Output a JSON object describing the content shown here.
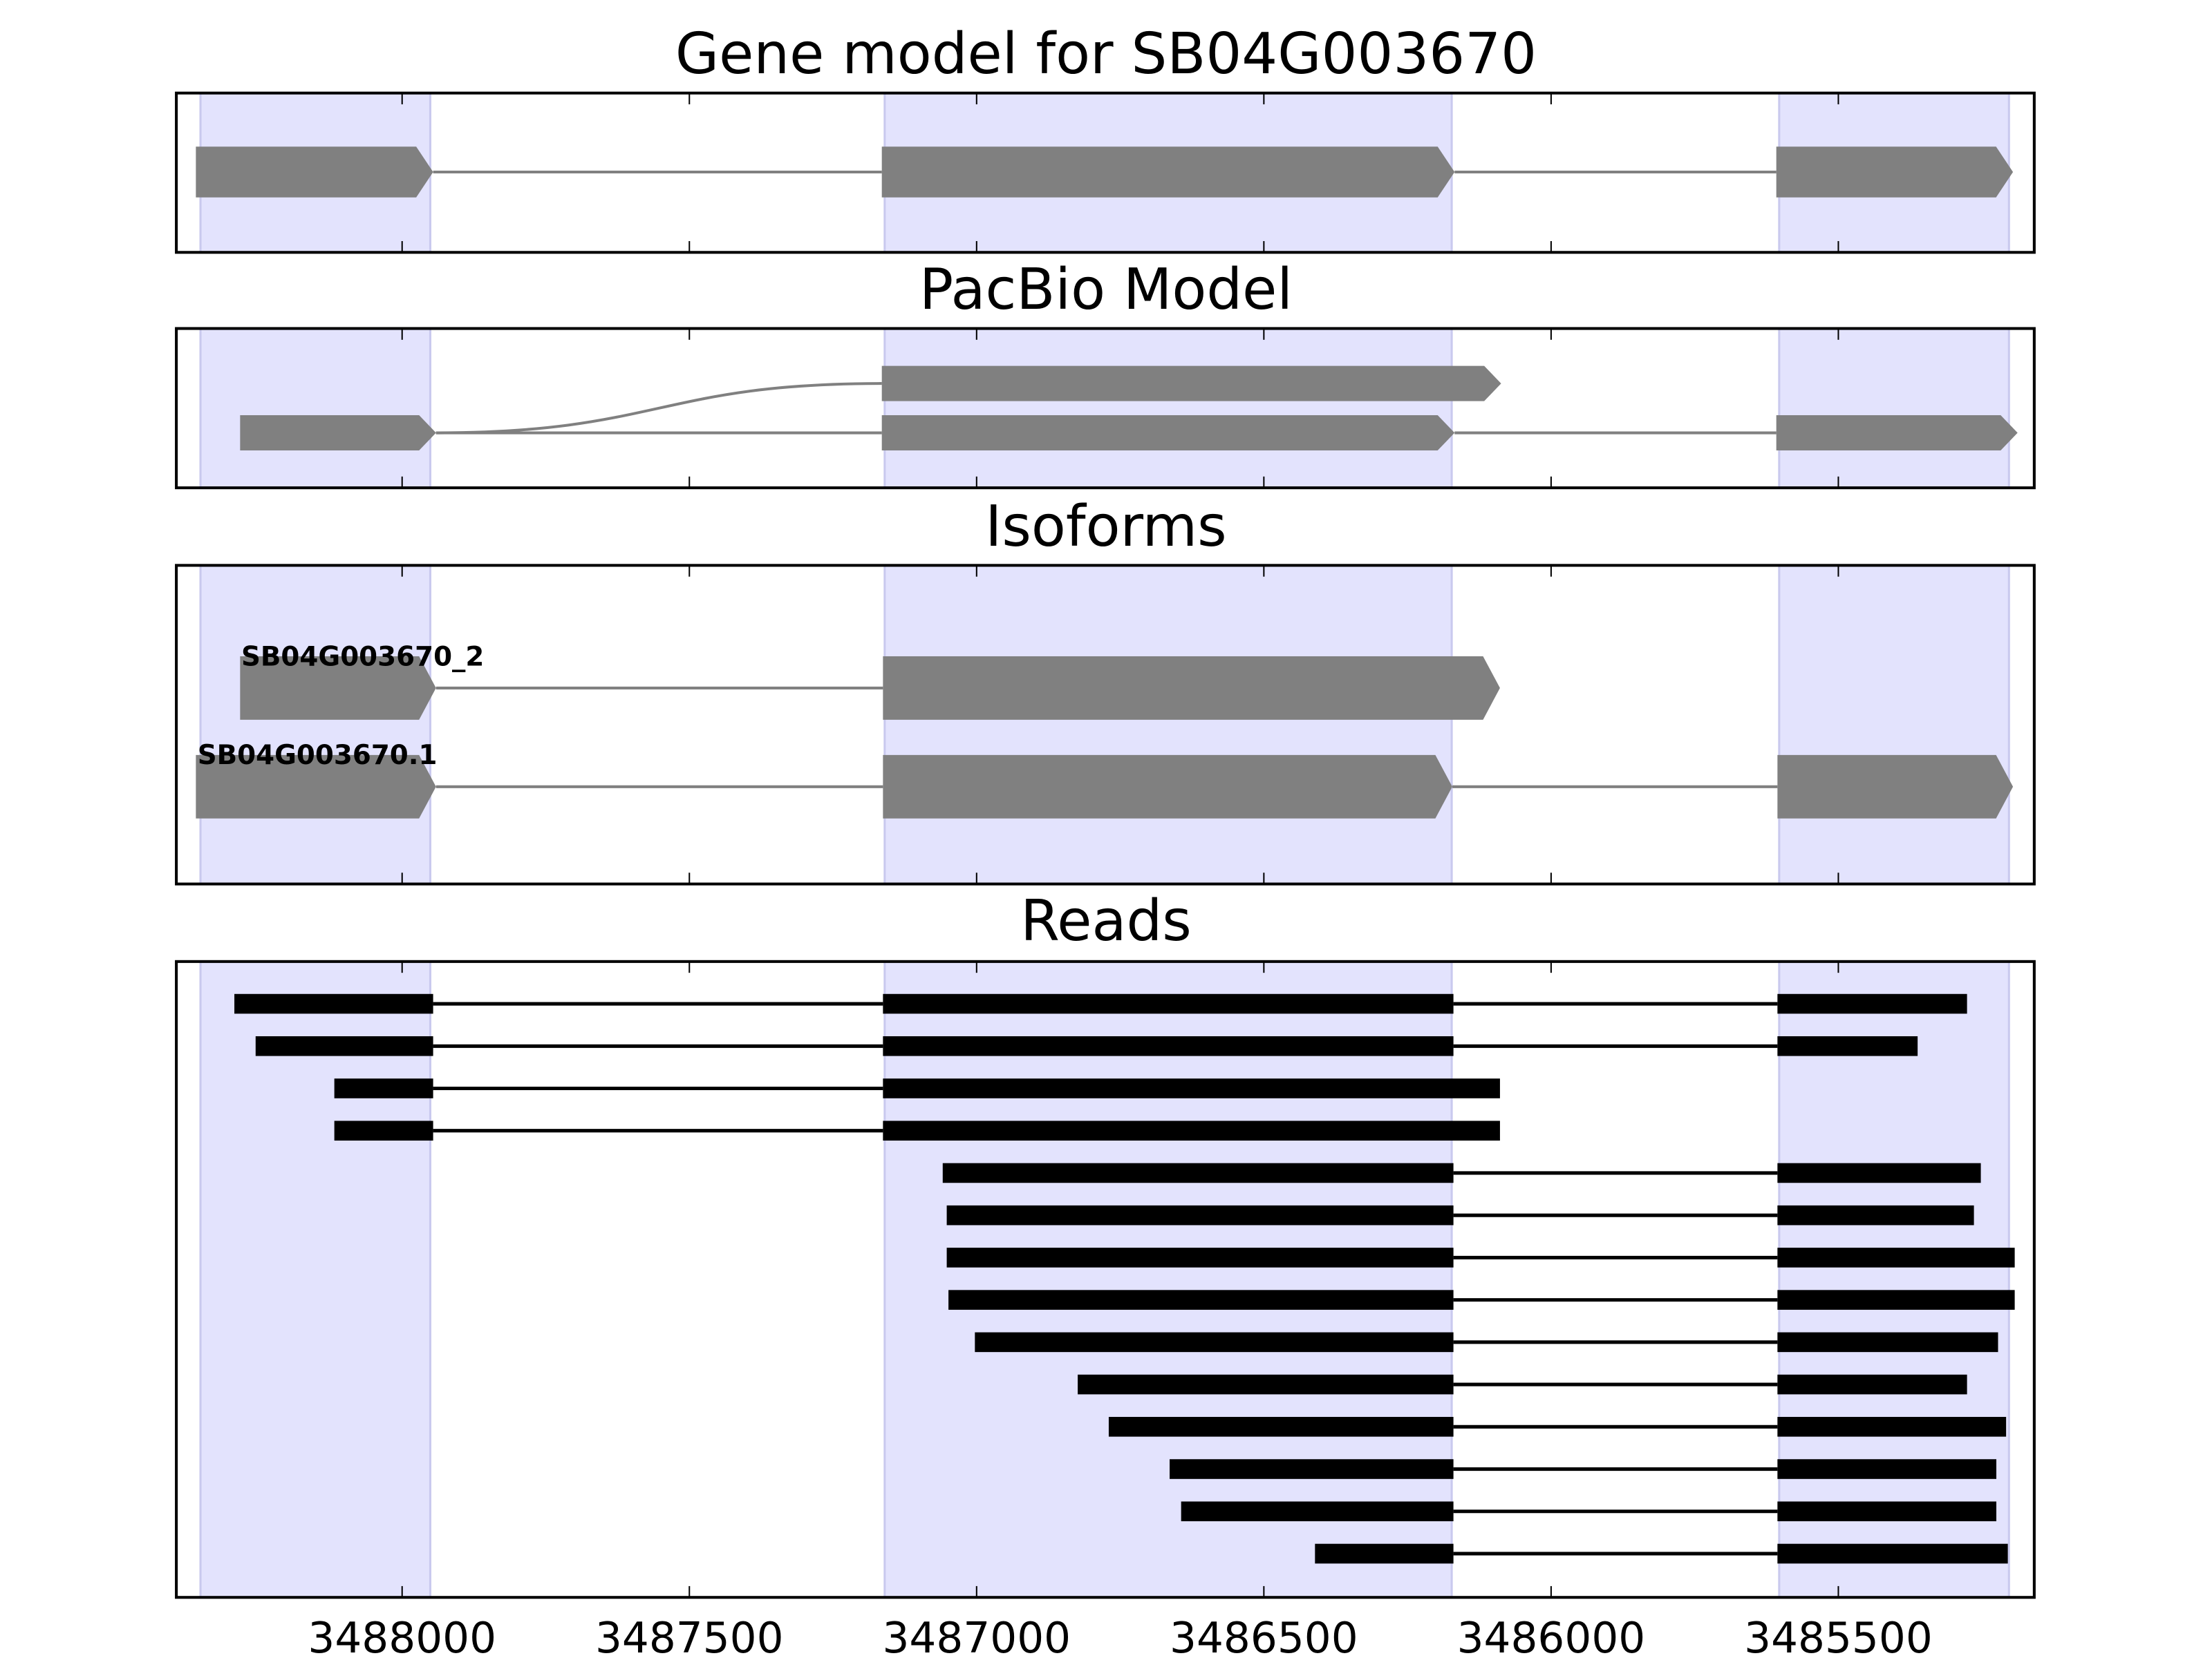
{
  "chart_data": {
    "type": "gene-track",
    "xlim": [
      3488393,
      3485159
    ],
    "x_ticks": [
      3488000,
      3487500,
      3487000,
      3486500,
      3486000,
      3485500
    ],
    "x_tick_labels": [
      "3488000",
      "3487500",
      "3487000",
      "3486500",
      "3486000",
      "3485500"
    ],
    "shaded_regions": [
      [
        3488351,
        3487951
      ],
      [
        3487160,
        3486173
      ],
      [
        3485603,
        3485203
      ]
    ],
    "colors": {
      "shade": "#e3e3fd",
      "shade_edge": "#c9c9ee",
      "exon": "#808080",
      "intron": "#808080",
      "read": "#000000"
    },
    "panels": [
      {
        "title": "Gene model for SB04G003670",
        "tracks": [
          {
            "exons": [
              [
                3488359,
                3487946
              ],
              [
                3487165,
                3486168
              ],
              [
                3485608,
                3485196
              ]
            ]
          }
        ]
      },
      {
        "title": "PacBio Model",
        "tracks": [
          {
            "exons": [
              [
                3488282,
                3487941
              ],
              [
                3487165,
                3486087
              ]
            ],
            "branch": true
          },
          {
            "exons": [
              [
                3488282,
                3487941
              ],
              [
                3487165,
                3486168
              ],
              [
                3485608,
                3485188
              ]
            ]
          }
        ]
      },
      {
        "title": "Isoforms",
        "tracks": [
          {
            "label": "SB04G003670_2",
            "exons": [
              [
                3488282,
                3487941
              ],
              [
                3487163,
                3486089
              ]
            ]
          },
          {
            "label": "SB04G003670.1",
            "exons": [
              [
                3488359,
                3487941
              ],
              [
                3487163,
                3486172
              ],
              [
                3485606,
                3485196
              ]
            ]
          }
        ]
      },
      {
        "title": "Reads",
        "reads": [
          [
            [
              3488292,
              3487946
            ],
            [
              3487163,
              3486170
            ],
            [
              3485606,
              3485276
            ]
          ],
          [
            [
              3488255,
              3487946
            ],
            [
              3487163,
              3486170
            ],
            [
              3485606,
              3485362
            ]
          ],
          [
            [
              3488118,
              3487946
            ],
            [
              3487163,
              3486089
            ]
          ],
          [
            [
              3488118,
              3487946
            ],
            [
              3487163,
              3486089
            ]
          ],
          [
            [
              3487059,
              3486170
            ],
            [
              3485606,
              3485252
            ]
          ],
          [
            [
              3487052,
              3486170
            ],
            [
              3485606,
              3485264
            ]
          ],
          [
            [
              3487052,
              3486170
            ],
            [
              3485606,
              3485193
            ]
          ],
          [
            [
              3487049,
              3486170
            ],
            [
              3485606,
              3485193
            ]
          ],
          [
            [
              3487003,
              3486170
            ],
            [
              3485606,
              3485222
            ]
          ],
          [
            [
              3486824,
              3486170
            ],
            [
              3485606,
              3485276
            ]
          ],
          [
            [
              3486770,
              3486170
            ],
            [
              3485606,
              3485208
            ]
          ],
          [
            [
              3486664,
              3486170
            ],
            [
              3485606,
              3485225
            ]
          ],
          [
            [
              3486644,
              3486170
            ],
            [
              3485606,
              3485225
            ]
          ],
          [
            [
              3486411,
              3486170
            ],
            [
              3485606,
              3485205
            ]
          ]
        ]
      }
    ]
  }
}
